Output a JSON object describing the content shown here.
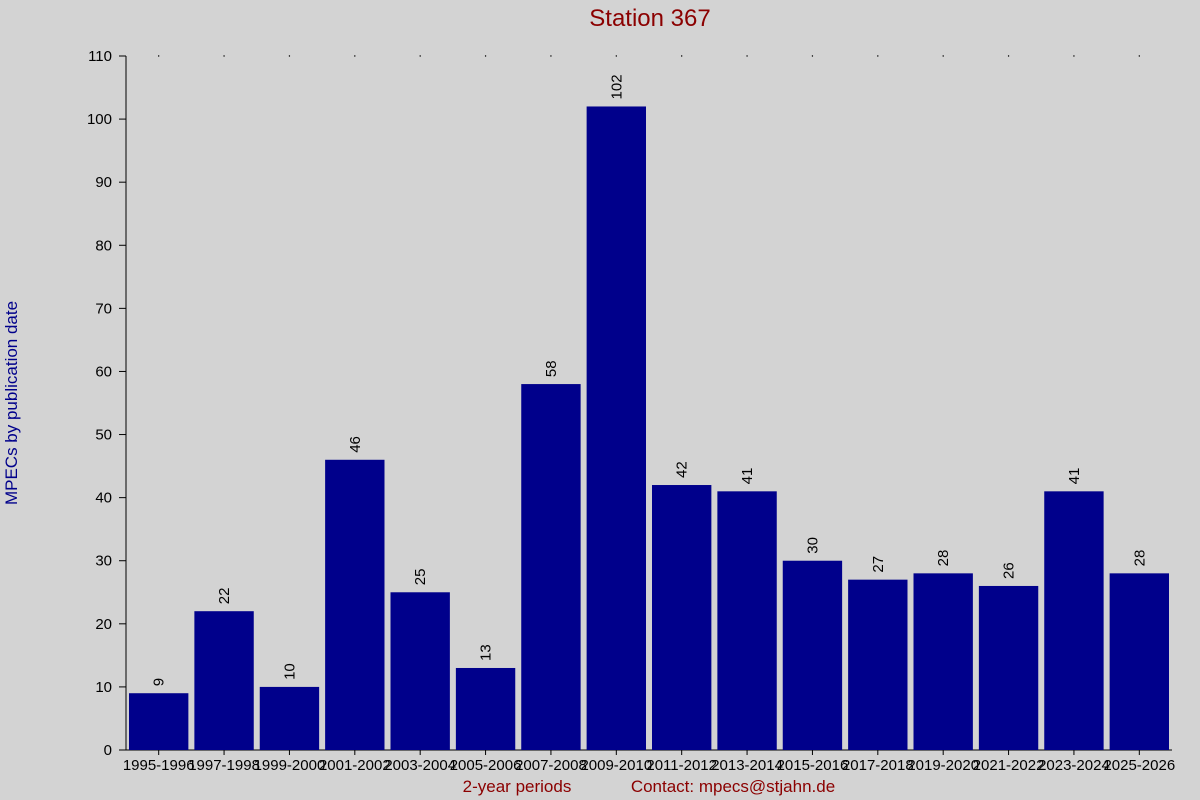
{
  "chart_data": {
    "type": "bar",
    "title": "Station 367",
    "y_label": "MPECs by publication date",
    "x_label": "2-year periods",
    "contact": "Contact: mpecs@stjahn.de",
    "categories": [
      "1995-1996",
      "1997-1998",
      "1999-2000",
      "2001-2002",
      "2003-2004",
      "2005-2006",
      "2007-2008",
      "2009-2010",
      "2011-2012",
      "2013-2014",
      "2015-2016",
      "2017-2018",
      "2019-2020",
      "2021-2022",
      "2023-2024",
      "2025-2026"
    ],
    "values": [
      9,
      22,
      10,
      46,
      25,
      13,
      58,
      102,
      42,
      41,
      30,
      27,
      28,
      26,
      41,
      28
    ],
    "color": "#00008b",
    "ylim": [
      0,
      110
    ],
    "yticks": [
      0,
      10,
      20,
      30,
      40,
      50,
      60,
      70,
      80,
      90,
      100,
      110
    ]
  }
}
